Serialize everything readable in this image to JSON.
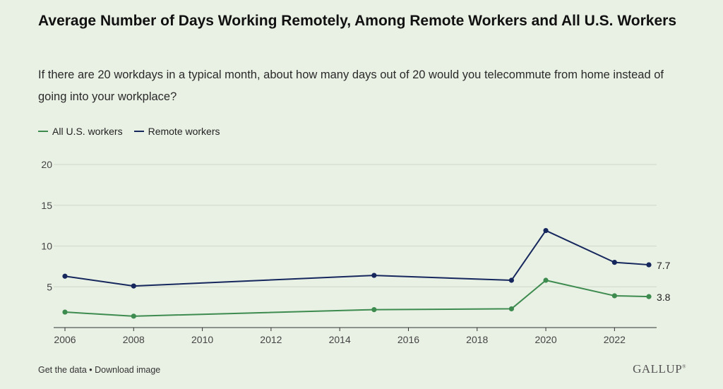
{
  "header": {
    "title": "Average Number of Days Working Remotely, Among Remote Workers and All U.S. Workers",
    "subtitle": "If there are 20 workdays in a typical month, about how many days out of 20 would you telecommute from home instead of going into your workplace?"
  },
  "legend": {
    "items": [
      {
        "label": "All U.S. workers",
        "color": "#3d8b4f"
      },
      {
        "label": "Remote workers",
        "color": "#15275c"
      }
    ]
  },
  "chart_data": {
    "type": "line",
    "title": "Average Number of Days Working Remotely, Among Remote Workers and All U.S. Workers",
    "xlabel": "",
    "ylabel": "",
    "xlim": [
      2006,
      2023
    ],
    "ylim": [
      0,
      20
    ],
    "x_ticks": [
      "2006",
      "2008",
      "2010",
      "2012",
      "2014",
      "2016",
      "2018",
      "2020",
      "2022"
    ],
    "y_ticks": [
      "5",
      "10",
      "15",
      "20"
    ],
    "grid": true,
    "legend_position": "top-left",
    "series": [
      {
        "name": "All U.S. workers",
        "color": "#3d8b4f",
        "x": [
          2006,
          2008,
          2015,
          2019,
          2020,
          2022,
          2023
        ],
        "values": [
          1.9,
          1.4,
          2.2,
          2.3,
          5.8,
          3.9,
          3.8
        ],
        "end_label": "3.8"
      },
      {
        "name": "Remote workers",
        "color": "#15275c",
        "x": [
          2006,
          2008,
          2015,
          2019,
          2020,
          2022,
          2023
        ],
        "values": [
          6.3,
          5.1,
          6.4,
          5.8,
          11.9,
          8.0,
          7.7
        ],
        "end_label": "7.7"
      }
    ]
  },
  "footer": {
    "get_data": "Get the data",
    "separator": " • ",
    "download": "Download image",
    "brand": "GALLUP",
    "brand_mark": "®"
  }
}
